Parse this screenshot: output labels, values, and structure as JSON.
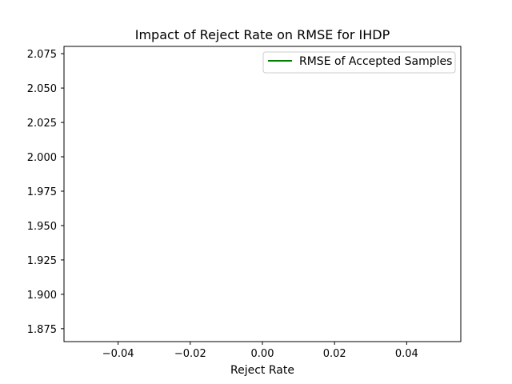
{
  "chart_data": {
    "type": "line",
    "title": "Impact of Reject Rate on RMSE for IHDP",
    "xlabel": "Reject Rate",
    "ylabel": "",
    "xlim": [
      -0.055,
      0.055
    ],
    "ylim": [
      1.8656,
      2.0803
    ],
    "x_ticks": [
      -0.04,
      -0.02,
      0.0,
      0.02,
      0.04
    ],
    "x_tick_labels": [
      "−0.04",
      "−0.02",
      "0.00",
      "0.02",
      "0.04"
    ],
    "y_ticks": [
      1.875,
      1.9,
      1.925,
      1.95,
      1.975,
      2.0,
      2.025,
      2.05,
      2.075
    ],
    "y_tick_labels": [
      "1.875",
      "1.900",
      "1.925",
      "1.950",
      "1.975",
      "2.000",
      "2.025",
      "2.050",
      "2.075"
    ],
    "grid": false,
    "legend_position": "upper right",
    "series": [
      {
        "name": "RMSE of Accepted Samples",
        "color": "#008000",
        "x": [],
        "y": []
      }
    ]
  }
}
